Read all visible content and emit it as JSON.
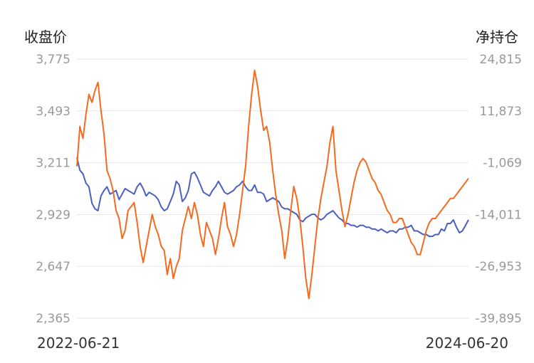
{
  "chart_data": {
    "type": "line",
    "left_axis_title": "收盘价",
    "right_axis_title": "净持仓",
    "x_start_label": "2022-06-21",
    "x_end_label": "2024-06-20",
    "left_ticks": [
      "3,775",
      "3,493",
      "3,211",
      "2,929",
      "2,647",
      "2,365"
    ],
    "right_ticks": [
      "24,815",
      "11,873",
      "-1,069",
      "-14,011",
      "-26,953",
      "-39,895"
    ],
    "left_range": [
      2365,
      3775
    ],
    "right_range": [
      -39895,
      24815
    ],
    "grid": true,
    "series": [
      {
        "axis": "left",
        "color": "#4a5fc1",
        "values": [
          3240,
          3170,
          3150,
          3100,
          3080,
          2990,
          2960,
          2950,
          3030,
          3060,
          3080,
          3040,
          3050,
          3060,
          3010,
          3040,
          3070,
          3060,
          3050,
          3040,
          3080,
          3100,
          3070,
          3030,
          3050,
          3040,
          3030,
          3010,
          2970,
          2950,
          2960,
          3000,
          3040,
          3110,
          3090,
          3000,
          3020,
          3060,
          3150,
          3160,
          3130,
          3090,
          3050,
          3040,
          3030,
          3060,
          3080,
          3110,
          3080,
          3050,
          3040,
          3050,
          3060,
          3080,
          3090,
          3110,
          3080,
          3060,
          3060,
          3090,
          3050,
          3050,
          3040,
          3000,
          3010,
          3020,
          3010,
          3000,
          2970,
          2960,
          2960,
          2950,
          2940,
          2930,
          2900,
          2890,
          2910,
          2920,
          2930,
          2930,
          2910,
          2900,
          2910,
          2930,
          2940,
          2950,
          2930,
          2910,
          2900,
          2880,
          2880,
          2870,
          2870,
          2860,
          2870,
          2870,
          2860,
          2860,
          2850,
          2850,
          2840,
          2850,
          2840,
          2830,
          2840,
          2840,
          2830,
          2850,
          2850,
          2860,
          2860,
          2870,
          2840,
          2840,
          2830,
          2820,
          2820,
          2810,
          2810,
          2820,
          2820,
          2850,
          2840,
          2880,
          2880,
          2900,
          2860,
          2830,
          2840,
          2870,
          2900
        ]
      },
      {
        "axis": "right",
        "color": "#f56a1e",
        "values": [
          -2000,
          8000,
          5000,
          11000,
          16000,
          14000,
          17000,
          19000,
          12000,
          6000,
          -3000,
          -5000,
          -8000,
          -13000,
          -15000,
          -20000,
          -18000,
          -13000,
          -12000,
          -11000,
          -16000,
          -22000,
          -26000,
          -22000,
          -18000,
          -14000,
          -17000,
          -19000,
          -22000,
          -23000,
          -29000,
          -25000,
          -30000,
          -27000,
          -25000,
          -18000,
          -15000,
          -12000,
          -15000,
          -11000,
          -14000,
          -19000,
          -22000,
          -16000,
          -18000,
          -20000,
          -24000,
          -20000,
          -15000,
          -11000,
          -17000,
          -19000,
          -22000,
          -19000,
          -14000,
          -8000,
          -2000,
          8000,
          16000,
          22000,
          18000,
          12000,
          7000,
          8000,
          4000,
          -3000,
          -9000,
          -14000,
          -18000,
          -25000,
          -20000,
          -13000,
          -7000,
          -10000,
          -15000,
          -22000,
          -30000,
          -35000,
          -29000,
          -22000,
          -15000,
          -10000,
          -6000,
          -2000,
          4000,
          8000,
          -3000,
          -8000,
          -13000,
          -17000,
          -14000,
          -10000,
          -6000,
          -3000,
          -1000,
          0,
          -1000,
          -3000,
          -5000,
          -6000,
          -8000,
          -9000,
          -11000,
          -13000,
          -14000,
          -16000,
          -16000,
          -15000,
          -15000,
          -17000,
          -19000,
          -21000,
          -22000,
          -24000,
          -24000,
          -21000,
          -18000,
          -16000,
          -15000,
          -15000,
          -14000,
          -13000,
          -12000,
          -11000,
          -10000,
          -10000,
          -9000,
          -8000,
          -7000,
          -6000,
          -5000
        ]
      }
    ]
  }
}
